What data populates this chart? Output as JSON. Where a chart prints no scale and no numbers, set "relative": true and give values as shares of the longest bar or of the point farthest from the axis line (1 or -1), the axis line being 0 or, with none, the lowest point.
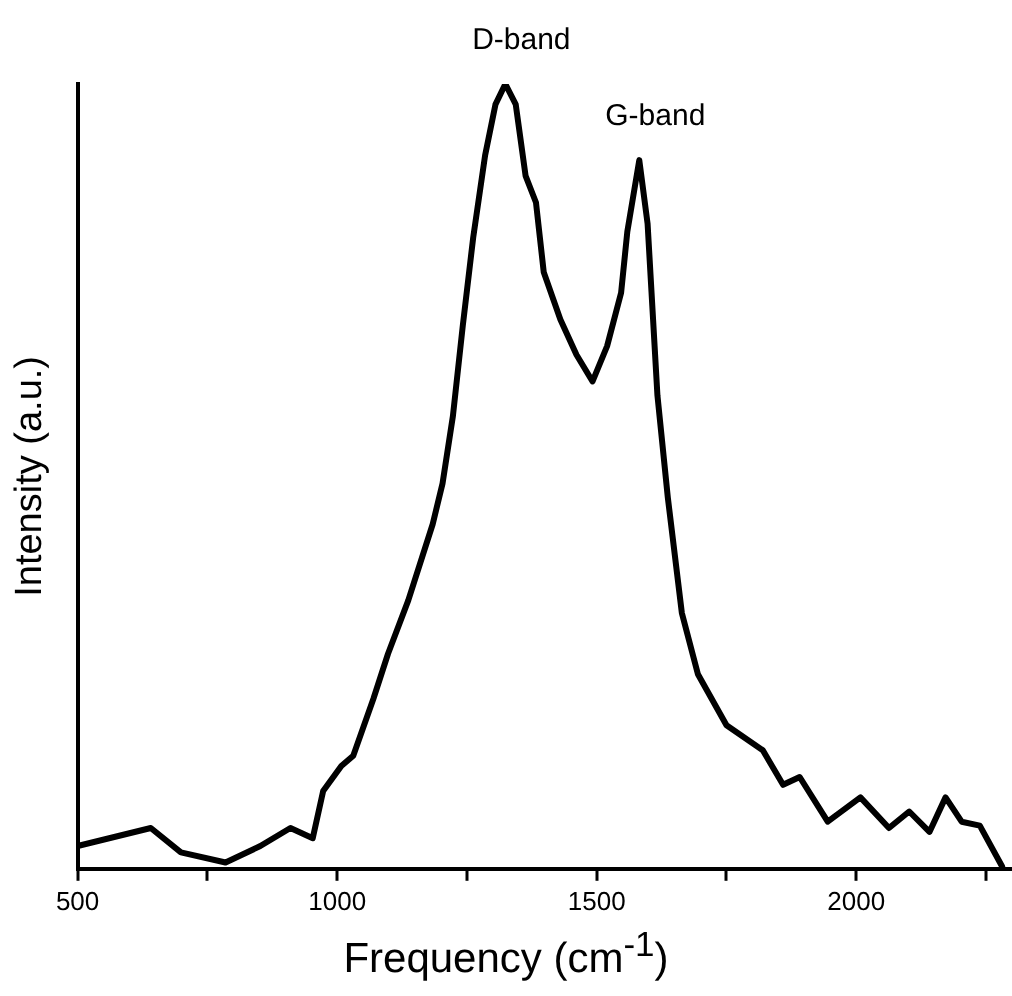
{
  "chart_data": {
    "type": "line",
    "relative": true,
    "xlabel": "Frequency (cm$^{-1}$)",
    "ylabel": "Intensity (a.u.)",
    "xlim": [
      500,
      2300
    ],
    "xticks": [
      500,
      {
        "value": 750,
        "label": null
      },
      1000,
      {
        "value": 1250,
        "label": null
      },
      1500,
      {
        "value": 1750,
        "label": null
      },
      2000,
      {
        "value": 2250,
        "label": null
      }
    ],
    "grid": false,
    "legend": false,
    "marker": "none",
    "line_style": "solid",
    "annotations": [
      {
        "text": "D-band",
        "x": 1324,
        "y": 1
      },
      {
        "text": "G-band",
        "x": 1582,
        "y": 0.903
      }
    ],
    "series": [
      {
        "color": "#000000",
        "x": [
          500,
          641,
          699,
          785,
          852,
          910,
          953,
          973,
          1008,
          1031,
          1070,
          1098,
          1137,
          1184,
          1203,
          1223,
          1242,
          1262,
          1285,
          1305,
          1324,
          1344,
          1363,
          1383,
          1398,
          1430,
          1461,
          1492,
          1520,
          1547,
          1559,
          1582,
          1598,
          1617,
          1637,
          1664,
          1695,
          1750,
          1820,
          1859,
          1891,
          1945,
          2008,
          2063,
          2102,
          2141,
          2172,
          2203,
          2238,
          2281
        ],
        "values": [
          0.029,
          0.052,
          0.021,
          0.008,
          0.029,
          0.052,
          0.039,
          0.099,
          0.131,
          0.144,
          0.217,
          0.274,
          0.342,
          0.439,
          0.491,
          0.577,
          0.692,
          0.804,
          0.909,
          0.974,
          1.0,
          0.974,
          0.883,
          0.849,
          0.76,
          0.7,
          0.655,
          0.621,
          0.666,
          0.734,
          0.812,
          0.903,
          0.822,
          0.603,
          0.473,
          0.326,
          0.248,
          0.183,
          0.151,
          0.107,
          0.117,
          0.06,
          0.091,
          0.052,
          0.073,
          0.047,
          0.091,
          0.06,
          0.055,
          0.003
        ]
      }
    ]
  }
}
